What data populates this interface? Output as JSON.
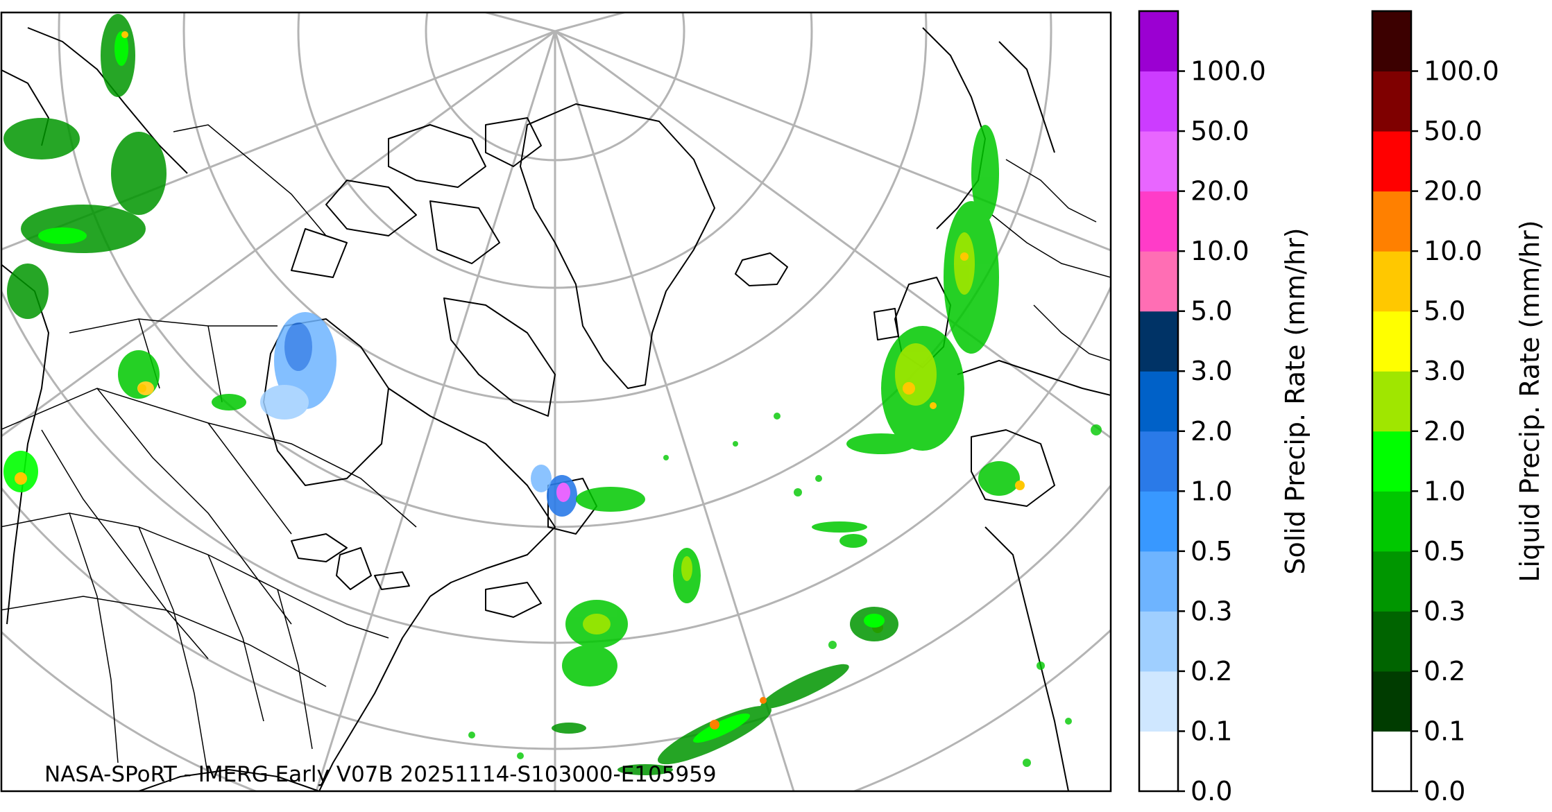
{
  "map": {
    "caption": "NASA-SPoRT - IMERG Early V07B 20251114-S103000-E105959"
  },
  "colorbars": [
    {
      "id": "solid",
      "label": "Solid Precip. Rate (mm/hr)",
      "ticks": [
        "0.0",
        "0.1",
        "0.2",
        "0.3",
        "0.5",
        "1.0",
        "2.0",
        "3.0",
        "5.0",
        "10.0",
        "20.0",
        "50.0",
        "100.0"
      ],
      "colors": [
        "#ffffff",
        "#cfe7ff",
        "#9fcfff",
        "#6eb4ff",
        "#3898ff",
        "#2a7ae8",
        "#0061c8",
        "#003366",
        "#ff6eb4",
        "#ff3cc8",
        "#e866ff",
        "#cc3cff",
        "#9b00d2"
      ]
    },
    {
      "id": "liquid",
      "label": "Liquid Precip. Rate (mm/hr)",
      "ticks": [
        "0.0",
        "0.1",
        "0.2",
        "0.3",
        "0.5",
        "1.0",
        "2.0",
        "3.0",
        "5.0",
        "10.0",
        "20.0",
        "50.0",
        "100.0"
      ],
      "colors": [
        "#ffffff",
        "#003c00",
        "#006400",
        "#009600",
        "#00c800",
        "#00ff00",
        "#a0e600",
        "#ffff00",
        "#ffc800",
        "#ff8000",
        "#ff0000",
        "#7f0000",
        "#3c0000"
      ]
    }
  ]
}
